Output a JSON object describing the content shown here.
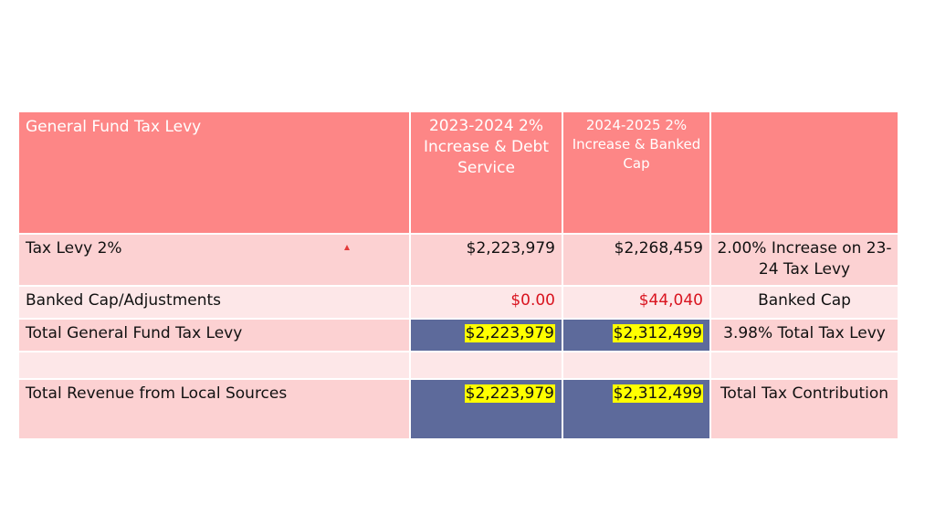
{
  "header": {
    "col1": "General Fund Tax Levy",
    "col2": "2023-2024  2% Increase & Debt Service",
    "col3": "2024-2025 2% Increase & Banked Cap",
    "col4": ""
  },
  "rows": [
    {
      "label": "Tax Levy 2%",
      "v2324": "$2,223,979",
      "v2425": "$2,268,459",
      "note": "2.00% Increase on 23-24 Tax Levy"
    },
    {
      "label": "Banked Cap/Adjustments",
      "v2324": "$0.00",
      "v2425": "$44,040",
      "note": "Banked Cap"
    },
    {
      "label": "Total General Fund Tax Levy",
      "v2324": "$2,223,979",
      "v2425": "$2,312,499",
      "note": "3.98% Total Tax Levy"
    },
    {
      "label": "",
      "v2324": "",
      "v2425": "",
      "note": ""
    },
    {
      "label": "Total Revenue from Local Sources",
      "v2324": "$2,223,979",
      "v2425": "$2,312,499",
      "note": "Total Tax Contribution"
    }
  ],
  "colors": {
    "header_bg": "#fd8686",
    "row_dark": "#fcd1d2",
    "row_light": "#fde7e8",
    "total_cell": "#5d6a9b",
    "highlight": "#ffff00",
    "adjustment_text": "#d9141f"
  }
}
